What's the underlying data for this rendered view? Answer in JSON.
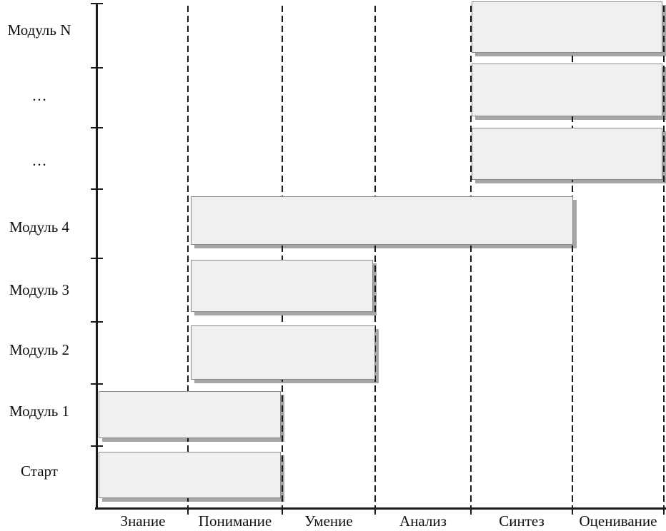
{
  "chart_data": {
    "type": "bar",
    "variant": "gantt",
    "orientation": "horizontal",
    "title": "",
    "xlabel": "",
    "ylabel": "",
    "grid": "dashed-vertical",
    "legend_position": "none",
    "x_categories": [
      "Знание",
      "Понимание",
      "Умение",
      "Анализ",
      "Синтез",
      "Оценивание"
    ],
    "y_categories": [
      "Модуль N",
      "…",
      "…",
      "Модуль 4",
      "Модуль 3",
      "Модуль 2",
      "Модуль 1",
      "Старт"
    ],
    "bars": [
      {
        "row": "Модуль N",
        "from": "Синтез",
        "to": "Оценивание",
        "span_cols": [
          4,
          6
        ]
      },
      {
        "row": "…",
        "from": "Синтез",
        "to": "Оценивание",
        "span_cols": [
          4,
          6
        ]
      },
      {
        "row": "…",
        "from": "Синтез",
        "to": "Оценивание",
        "span_cols": [
          4,
          6
        ]
      },
      {
        "row": "Модуль 4",
        "from": "Понимание",
        "to": "Синтез",
        "span_cols": [
          1,
          5
        ]
      },
      {
        "row": "Модуль 3",
        "from": "Понимание",
        "to": "Умение",
        "span_cols": [
          1,
          3
        ]
      },
      {
        "row": "Модуль 2",
        "from": "Понимание",
        "to": "Умение",
        "span_cols": [
          1,
          3
        ]
      },
      {
        "row": "Модуль 1",
        "from": "Знание",
        "to": "Понимание",
        "span_cols": [
          0,
          2
        ]
      },
      {
        "row": "Старт",
        "from": "Знание",
        "to": "Понимание",
        "span_cols": [
          0,
          2
        ]
      }
    ],
    "colors": {
      "bar_fill": "#f0f0f0",
      "bar_border": "#8a8a8a",
      "bar_shadow": "#a6a6a6",
      "axis": "#1a1a1a",
      "grid_line": "#1a1a1a",
      "text": "#111111",
      "background": "#ffffff"
    }
  }
}
